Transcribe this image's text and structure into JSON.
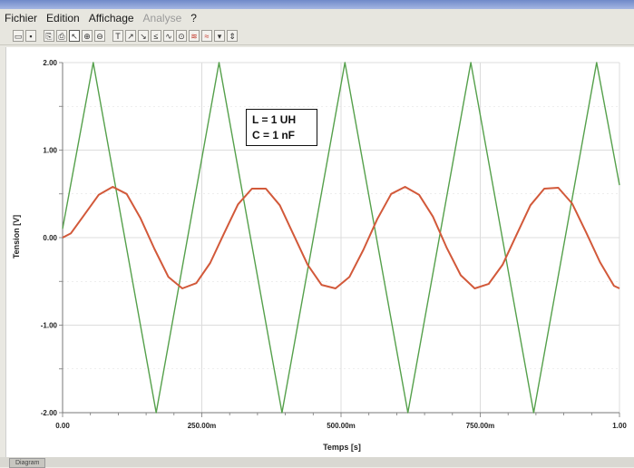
{
  "menu": {
    "items": [
      {
        "label": "Fichier",
        "enabled": true
      },
      {
        "label": "Edition",
        "enabled": true
      },
      {
        "label": "Affichage",
        "enabled": true
      },
      {
        "label": "Analyse",
        "enabled": false
      },
      {
        "label": "?",
        "enabled": true
      }
    ]
  },
  "toolbar": {
    "buttons": [
      {
        "icon": "open-icon",
        "glyph": "▭"
      },
      {
        "icon": "save-icon",
        "glyph": "▪"
      },
      {
        "icon": "copy-icon",
        "glyph": "⎘"
      },
      {
        "icon": "print-icon",
        "glyph": "⎙"
      },
      {
        "icon": "pointer-icon",
        "glyph": "↖"
      },
      {
        "icon": "zoom-in-icon",
        "glyph": "⊕"
      },
      {
        "icon": "zoom-out-icon",
        "glyph": "⊖"
      },
      {
        "icon": "text-icon",
        "glyph": "T"
      },
      {
        "icon": "cursor-a-icon",
        "glyph": "↗"
      },
      {
        "icon": "cursor-b-icon",
        "glyph": "↘"
      },
      {
        "icon": "marker-icon",
        "glyph": "≤"
      },
      {
        "icon": "wave-icon",
        "glyph": "∿"
      },
      {
        "icon": "measure-icon",
        "glyph": "⊙"
      },
      {
        "icon": "curve-red-icon",
        "glyph": "≋"
      },
      {
        "icon": "curve-red2-icon",
        "glyph": "≈"
      },
      {
        "icon": "options-icon",
        "glyph": "▾"
      },
      {
        "icon": "spin-icon",
        "glyph": "⇕"
      }
    ]
  },
  "annotation": {
    "line1": "L = 1 UH",
    "line2": "C = 1 nF"
  },
  "status": {
    "tab_label": "Diagram"
  },
  "colors": {
    "triangle": "#55a04b",
    "sine": "#d2593a",
    "grid": "#dcdcdc",
    "axis": "#777777"
  },
  "chart_data": {
    "type": "line",
    "xlabel": "Temps [s]",
    "ylabel": "Tension [V]",
    "xlim": [
      0,
      1
    ],
    "ylim": [
      -2,
      2
    ],
    "x_ticks": [
      {
        "value": 0,
        "label": "0.00"
      },
      {
        "value": 0.25,
        "label": "250.00m"
      },
      {
        "value": 0.5,
        "label": "500.00m"
      },
      {
        "value": 0.75,
        "label": "750.00m"
      },
      {
        "value": 1,
        "label": "1.00"
      }
    ],
    "y_ticks": [
      {
        "value": 2,
        "label": "2.00"
      },
      {
        "value": 1,
        "label": "1.00"
      },
      {
        "value": 0,
        "label": "0.00"
      },
      {
        "value": -1,
        "label": "-1.00"
      },
      {
        "value": -2,
        "label": "-2.00"
      }
    ],
    "grid": true,
    "series": [
      {
        "color": "#55a04b",
        "x": [
          0.0,
          0.055,
          0.168,
          0.281,
          0.394,
          0.507,
          0.62,
          0.733,
          0.846,
          0.959,
          1.0
        ],
        "y": [
          0.1,
          2.0,
          -2.0,
          2.0,
          -2.0,
          2.0,
          -2.0,
          2.0,
          -2.0,
          2.0,
          0.6
        ]
      },
      {
        "color": "#d2593a",
        "x": [
          0.0,
          0.015,
          0.04,
          0.065,
          0.09,
          0.115,
          0.14,
          0.165,
          0.19,
          0.215,
          0.24,
          0.265,
          0.29,
          0.315,
          0.34,
          0.365,
          0.39,
          0.415,
          0.44,
          0.465,
          0.49,
          0.515,
          0.54,
          0.565,
          0.59,
          0.615,
          0.64,
          0.665,
          0.69,
          0.715,
          0.74,
          0.765,
          0.79,
          0.815,
          0.84,
          0.865,
          0.89,
          0.915,
          0.94,
          0.965,
          0.99,
          1.0
        ],
        "y": [
          0.0,
          0.05,
          0.27,
          0.49,
          0.58,
          0.5,
          0.22,
          -0.13,
          -0.45,
          -0.58,
          -0.52,
          -0.29,
          0.05,
          0.38,
          0.56,
          0.56,
          0.37,
          0.03,
          -0.31,
          -0.54,
          -0.58,
          -0.45,
          -0.14,
          0.21,
          0.5,
          0.58,
          0.49,
          0.24,
          -0.12,
          -0.43,
          -0.58,
          -0.53,
          -0.31,
          0.03,
          0.37,
          0.56,
          0.57,
          0.39,
          0.06,
          -0.28,
          -0.55,
          -0.58
        ]
      }
    ]
  }
}
